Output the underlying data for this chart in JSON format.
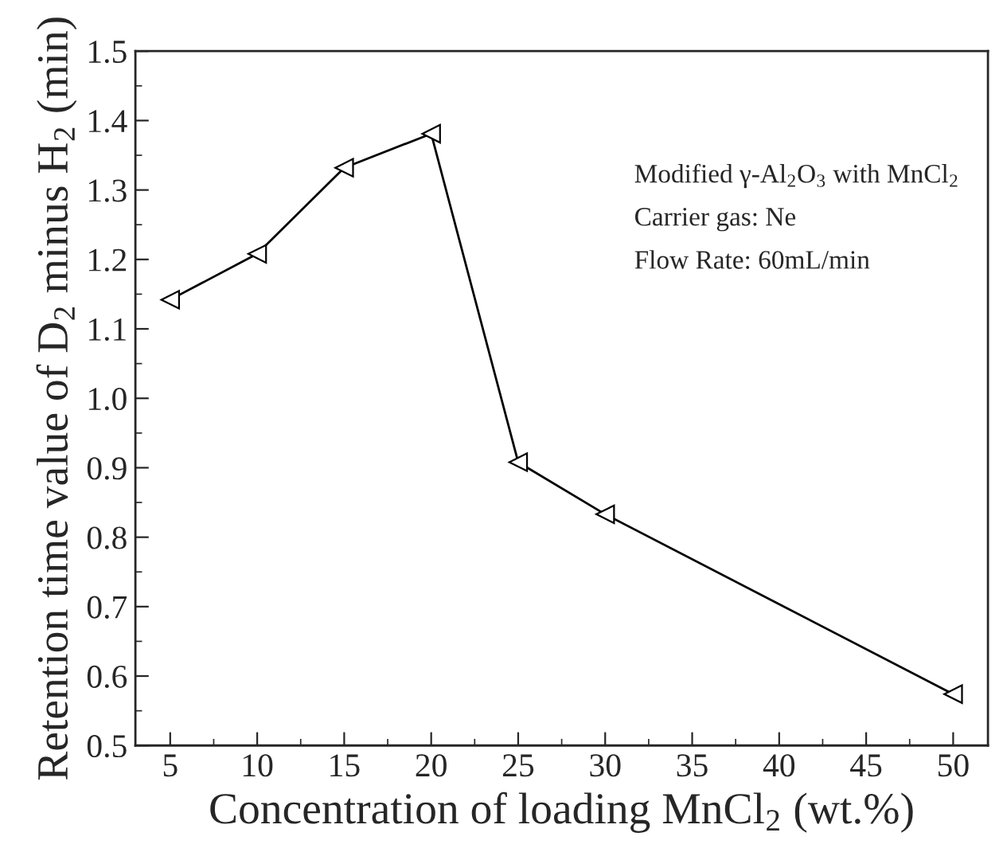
{
  "chart_data": {
    "type": "line",
    "xlabel": "Concentration of loading MnCl$_{2}$ (wt.%)",
    "ylabel": "Retention time value of D$_{2}$ minus H$_{2}$ (min)",
    "x": [
      5,
      10,
      15,
      20,
      25,
      30,
      50
    ],
    "series": [
      {
        "color": "#000000",
        "values": [
          1.142,
          1.208,
          1.332,
          1.381,
          0.908,
          0.833,
          0.574
        ]
      }
    ],
    "xlim": [
      3,
      52
    ],
    "xticks": [
      5,
      10,
      15,
      20,
      25,
      30,
      35,
      40,
      45,
      50
    ],
    "ylim": [
      0.5,
      1.5
    ],
    "yticks": [
      0.5,
      0.6,
      0.7,
      0.8,
      0.9,
      {
        "value": 1.0,
        "label": "1.0"
      },
      1.1,
      1.2,
      1.3,
      1.4,
      1.5
    ],
    "marker": "triangle",
    "line_style": "solid",
    "grid": false,
    "legend": false,
    "annotations": [
      "Modified γ-Al$_{2}$O$_{3}$ with MnCl$_{2}$",
      "Carrier gas: Ne",
      "Flow Rate: 60mL/min"
    ]
  }
}
